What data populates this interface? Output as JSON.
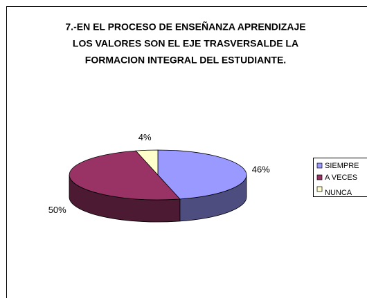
{
  "chart_data": {
    "type": "pie3d",
    "title": [
      "7.-EN EL PROCESO DE ENSEÑANZA APRENDIZAJE",
      "LOS VALORES SON EL EJE TRASVERSALDE LA",
      "FORMACION INTEGRAL DEL ESTUDIANTE."
    ],
    "categories": [
      "SIEMPRE",
      "A VECES",
      "NUNCA"
    ],
    "values": [
      46,
      50,
      4
    ],
    "value_labels": [
      "46%",
      "50%",
      "4%"
    ],
    "colors": [
      "#9999ff",
      "#993366",
      "#ffffcc"
    ],
    "legend": "right"
  }
}
